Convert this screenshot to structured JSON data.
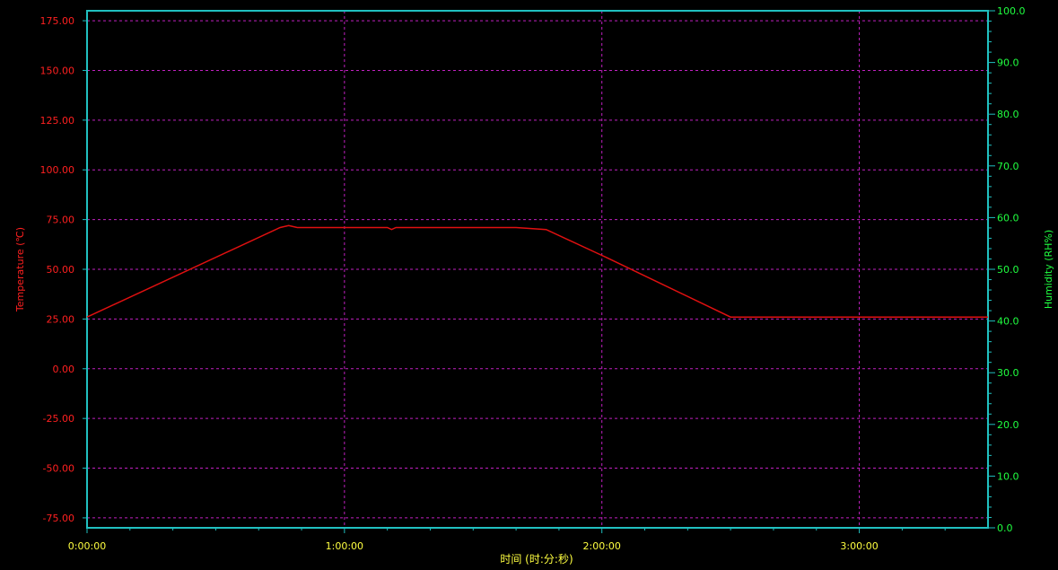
{
  "chart_data": {
    "type": "line",
    "title": "",
    "xlabel": "时间 (时:分:秒)",
    "ylabel": "Temperature (℃)",
    "ylabel_right": "Humidity (RH%)",
    "x_unit": "minutes",
    "xlim": [
      0,
      210
    ],
    "ylim": [
      -80,
      180
    ],
    "ylim_right": [
      0,
      100
    ],
    "x_ticks": [
      {
        "value": 0,
        "label": "0:00:00"
      },
      {
        "value": 60,
        "label": "1:00:00"
      },
      {
        "value": 120,
        "label": "2:00:00"
      },
      {
        "value": 180,
        "label": "3:00:00"
      }
    ],
    "y_ticks": [
      {
        "value": 175,
        "label": "175.00"
      },
      {
        "value": 150,
        "label": "150.00"
      },
      {
        "value": 125,
        "label": "125.00"
      },
      {
        "value": 100,
        "label": "100.00"
      },
      {
        "value": 75,
        "label": "75.00"
      },
      {
        "value": 50,
        "label": "50.00"
      },
      {
        "value": 25,
        "label": "25.00"
      },
      {
        "value": 0,
        "label": "0.00"
      },
      {
        "value": -25,
        "label": "-25.00"
      },
      {
        "value": -50,
        "label": "-50.00"
      },
      {
        "value": -75,
        "label": "-75.00"
      }
    ],
    "y_ticks_right": [
      {
        "value": 100,
        "label": "100.0"
      },
      {
        "value": 90,
        "label": "90.0"
      },
      {
        "value": 80,
        "label": "80.0"
      },
      {
        "value": 70,
        "label": "70.0"
      },
      {
        "value": 60,
        "label": "60.0"
      },
      {
        "value": 50,
        "label": "50.0"
      },
      {
        "value": 40,
        "label": "40.0"
      },
      {
        "value": 30,
        "label": "30.0"
      },
      {
        "value": 20,
        "label": "20.0"
      },
      {
        "value": 10,
        "label": "10.0"
      },
      {
        "value": 0,
        "label": "0.0"
      }
    ],
    "grid": true,
    "series": [
      {
        "axis": "left",
        "color": "#e01010",
        "x": [
          0,
          45,
          47,
          49,
          60,
          70,
          71,
          72,
          80,
          100,
          107,
          120,
          121,
          150,
          160,
          210
        ],
        "y": [
          26,
          71,
          72,
          71,
          71,
          71,
          70,
          71,
          71,
          71,
          70,
          57,
          56,
          26,
          26,
          26
        ]
      }
    ],
    "colors": {
      "background": "#000000",
      "frame": "#20c0c0",
      "grid": "#c020c0",
      "left_axis": "#ff2020",
      "right_axis": "#20ff40",
      "x_axis": "#ffff40"
    }
  }
}
